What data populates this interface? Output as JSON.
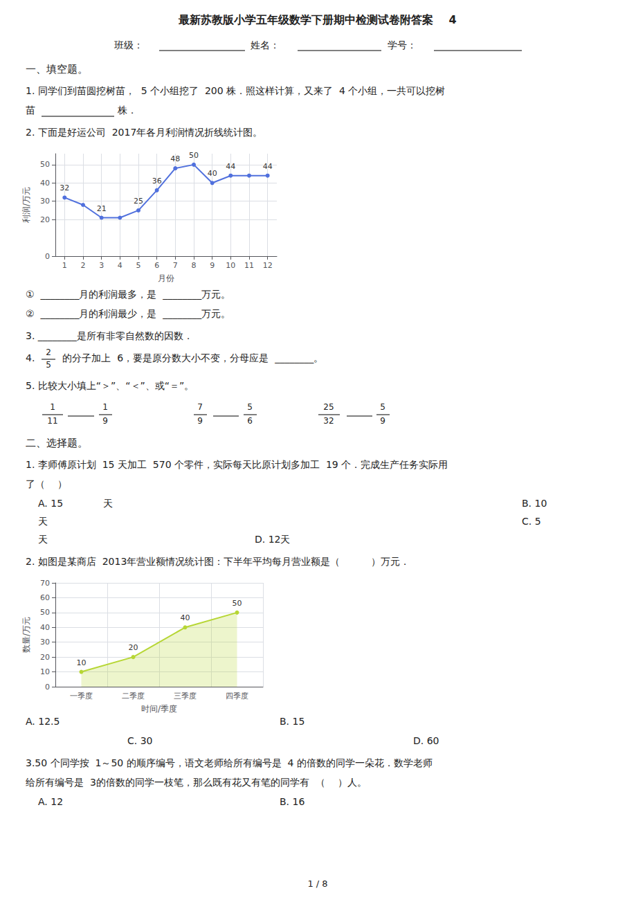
{
  "chart_data": [
    {
      "type": "line",
      "annotations": [
        "最新苏教版小学五年级数学下册期中检测试卷附答案    4",
        "班级：",
        "姓名：",
        "学号：",
        "一、填空题。",
        "1. 同学们到苗圆挖树苗，  5 个小组挖了  200 株．照这样计算，又来了  4 个小组，一共可以挖树",
        "苗 ",
        "株．",
        "2. 下面是好运公司  2017年各月利润情况折线统计图。",
        "①  ________月的利润最多，是  ________万元。",
        "②  ________月的利润最少，是  ________万元。",
        "3. ________是所有非零自然数的因数．",
        "4. ",
        "2",
        "5",
        " 的分子加上  6，要是原分数大小不变，分母应是  ________。",
        "5. 比较大小填上“＞”、“＜”、或“＝”。",
        "1",
        "11",
        "1",
        "9",
        "7",
        "9",
        "5",
        "6",
        "25",
        "32",
        "5",
        "9"
      ],
      "x": [
        1,
        2,
        3,
        4,
        5,
        6,
        7,
        8,
        9,
        10,
        11,
        12
      ],
      "values": [
        32,
        28,
        21,
        21,
        25,
        36,
        48,
        50,
        40,
        44,
        44,
        44
      ],
      "value_labels": [
        "32",
        null,
        "21",
        null,
        "25",
        "36",
        "48",
        "50",
        "40",
        "44",
        null,
        "44"
      ],
      "data_labels": true,
      "marker": "circle",
      "xlim": [
        0.5,
        12.5
      ],
      "xticks": [
        1,
        2,
        3,
        4,
        5,
        6,
        7,
        8,
        9,
        10,
        11,
        12
      ],
      "ylim": [
        0,
        56
      ],
      "yticks": [
        0,
        20,
        30,
        40,
        50
      ],
      "xlabel": "月份",
      "ylabel": "利润/万元",
      "grid": true
    },
    {
      "type": "area",
      "annotations": [
        "二、选择题。",
        "1. 李师傅原计划  15 天加工  570 个零件，实际每天比原计划多加工  19 个．完成生产任务实际用",
        "了（    ）",
        "A. 15             天",
        "B. 10",
        "天",
        "C. 5",
        "天",
        "D. 12天",
        "2. 如图是某商店  2013年营业额情况统计图：下半年平均每月营业额是（          ）万元．",
        "A. 12.5",
        "B. 15",
        "C. 30",
        "D. 60",
        "3.50 个同学按  1～50 的顺序编号，语文老师给所有编号是  4 的倍数的同学一朵花．数学老师",
        "给所有编号是  3的倍数的同学一枝笔，那么既有花又有笔的同学有  （    ）人。",
        "A. 12",
        "B. 16",
        "1 / 8"
      ],
      "categories": [
        "一季度",
        "二季度",
        "三季度",
        "四季度"
      ],
      "values": [
        10,
        20,
        40,
        50
      ],
      "data_labels": true,
      "marker": "circle",
      "ylim": [
        0,
        70
      ],
      "yticks": [
        0,
        10,
        20,
        30,
        40,
        50,
        60,
        70
      ],
      "xlabel": "时间/季度",
      "ylabel": "数量/万元",
      "grid": true
    }
  ]
}
